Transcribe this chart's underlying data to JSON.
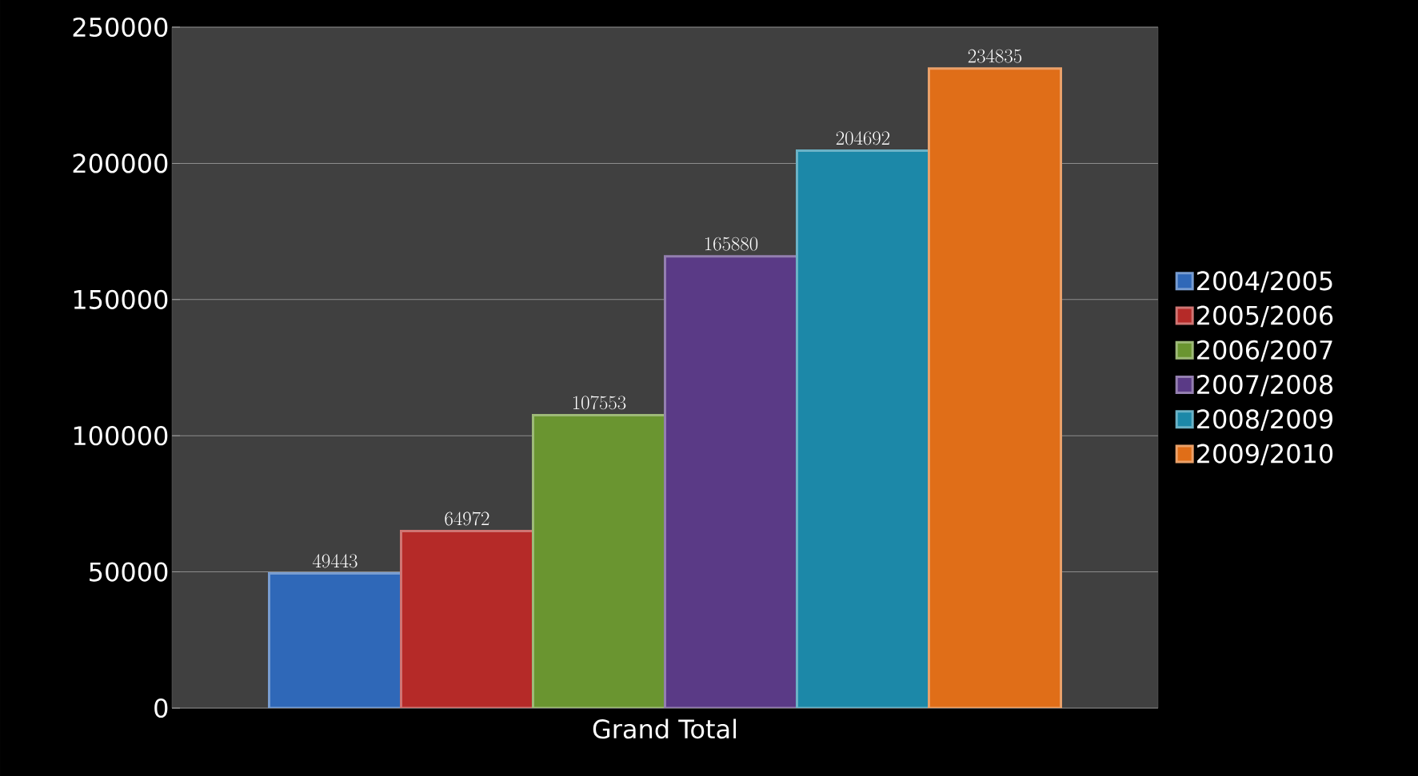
{
  "chart_data": {
    "type": "bar",
    "categories": [
      "Grand Total"
    ],
    "series": [
      {
        "name": "2004/2005",
        "color": "#2f68b8",
        "values": [
          49443
        ]
      },
      {
        "name": "2005/2006",
        "color": "#b52a28",
        "values": [
          64972
        ]
      },
      {
        "name": "2006/2007",
        "color": "#6a9530",
        "values": [
          107553
        ]
      },
      {
        "name": "2007/2008",
        "color": "#5a3a86",
        "values": [
          165880
        ]
      },
      {
        "name": "2008/2009",
        "color": "#1c88a8",
        "values": [
          204692
        ]
      },
      {
        "name": "2009/2010",
        "color": "#e06e18",
        "values": [
          234835
        ]
      }
    ],
    "ylim": [
      0,
      250000
    ],
    "yticks": [
      0,
      50000,
      100000,
      150000,
      200000,
      250000
    ],
    "grid": "y",
    "legend": "right",
    "data_labels": true
  }
}
